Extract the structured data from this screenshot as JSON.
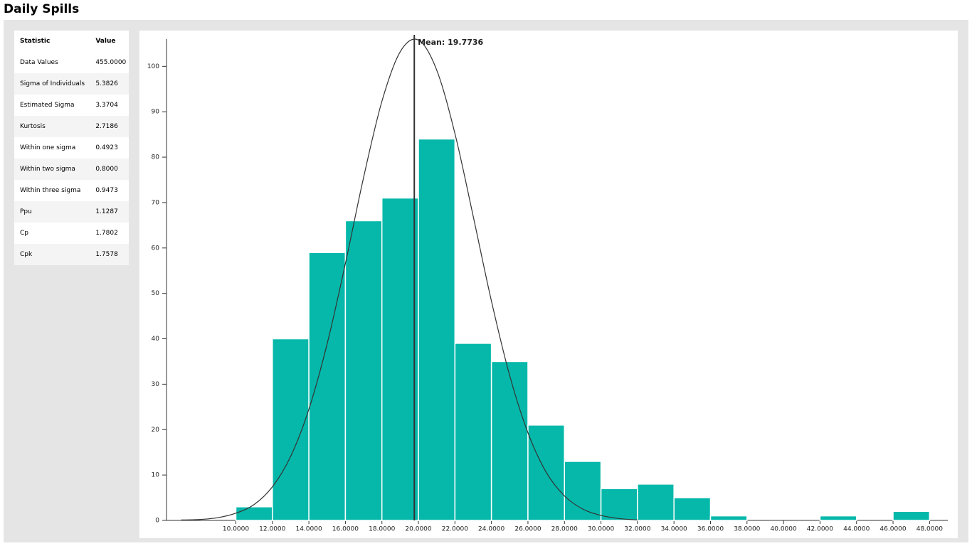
{
  "header": {
    "title": "Daily Spills"
  },
  "table": {
    "columns": [
      "Statistic",
      "Value"
    ],
    "rows": [
      [
        "Data Values",
        "455.0000"
      ],
      [
        "Sigma of Individuals",
        "5.3826"
      ],
      [
        "Estimated Sigma",
        "3.3704"
      ],
      [
        "Kurtosis",
        "2.7186"
      ],
      [
        "Within one sigma",
        "0.4923"
      ],
      [
        "Within two sigma",
        "0.8000"
      ],
      [
        "Within three sigma",
        "0.9473"
      ],
      [
        "Ppu",
        "1.1287"
      ],
      [
        "Cp",
        "1.7802"
      ],
      [
        "Cpk",
        "1.7578"
      ]
    ]
  },
  "chart_data": {
    "type": "histogram",
    "color": "#05b8aa",
    "bins": [
      10,
      12,
      14,
      16,
      18,
      20,
      22,
      24,
      26,
      28,
      30,
      32,
      34,
      36,
      38,
      40,
      42,
      44,
      46,
      48
    ],
    "values": [
      3,
      40,
      59,
      66,
      71,
      84,
      39,
      35,
      21,
      13,
      7,
      8,
      5,
      1,
      0,
      0,
      1,
      0,
      2
    ],
    "xlim": [
      6.2,
      49
    ],
    "ylim": [
      0,
      106
    ],
    "xticks": [
      {
        "value": 10,
        "label": "10.0000"
      },
      {
        "value": 12,
        "label": "12.0000"
      },
      {
        "value": 14,
        "label": "14.0000"
      },
      {
        "value": 16,
        "label": "16.0000"
      },
      {
        "value": 18,
        "label": "18.0000"
      },
      {
        "value": 20,
        "label": "20.0000"
      },
      {
        "value": 22,
        "label": "22.0000"
      },
      {
        "value": 24,
        "label": "24.0000"
      },
      {
        "value": 26,
        "label": "26.0000"
      },
      {
        "value": 28,
        "label": "28.0000"
      },
      {
        "value": 30,
        "label": "30.0000"
      },
      {
        "value": 32,
        "label": "32.0000"
      },
      {
        "value": 34,
        "label": "34.0000"
      },
      {
        "value": 36,
        "label": "36.0000"
      },
      {
        "value": 38,
        "label": "38.0000"
      },
      {
        "value": 40,
        "label": "40.0000"
      },
      {
        "value": 42,
        "label": "42.0000"
      },
      {
        "value": 44,
        "label": "44.0000"
      },
      {
        "value": 46,
        "label": "46.0000"
      },
      {
        "value": 48,
        "label": "48.0000"
      }
    ],
    "yticks": [
      0,
      10,
      20,
      30,
      40,
      50,
      60,
      70,
      80,
      90,
      100
    ],
    "mean": 19.7736,
    "mean_label": "Mean: 19.7736",
    "curve": {
      "color": "#333333",
      "x": [
        7,
        8,
        9,
        10,
        11,
        12,
        13,
        14,
        15,
        16,
        17,
        18,
        19,
        20,
        21,
        22,
        23,
        24,
        25,
        26,
        27,
        28,
        29,
        30,
        31,
        32
      ],
      "values": [
        0.1,
        0.2,
        0.6,
        1.6,
        3.5,
        7.4,
        14.1,
        24.5,
        38.9,
        56.6,
        75.6,
        92.3,
        103.2,
        105.8,
        99.2,
        85.2,
        67.0,
        48.3,
        31.9,
        19.3,
        10.6,
        5.4,
        2.5,
        1.1,
        0.4,
        0.1
      ]
    }
  }
}
